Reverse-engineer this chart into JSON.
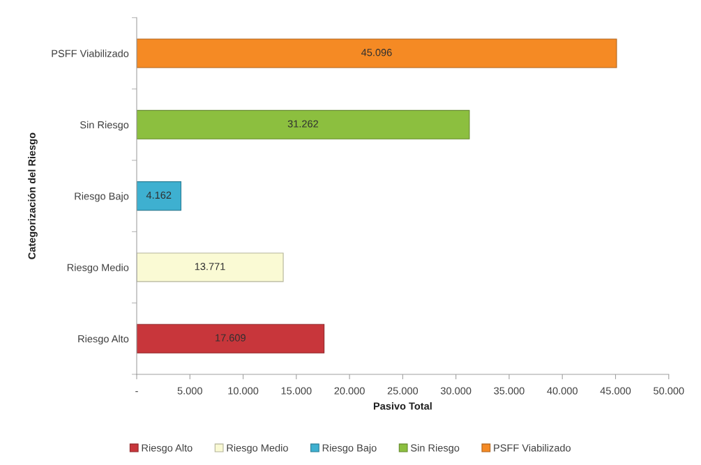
{
  "chart_data": {
    "type": "bar",
    "orientation": "horizontal",
    "stacked": true,
    "xlabel": "Pasivo Total",
    "ylabel": "Categorización del Riesgo",
    "categories": [
      "PSFF Viabilizado",
      "Sin Riesgo",
      "Riesgo Bajo",
      "Riesgo Medio",
      "Riesgo Alto"
    ],
    "series": [
      {
        "name": "Riesgo Alto",
        "color": "#c8363b",
        "values": [
          null,
          null,
          null,
          null,
          17609
        ],
        "value_labels": [
          null,
          null,
          null,
          null,
          "17.609"
        ]
      },
      {
        "name": "Riesgo Medio",
        "color": "#fafad4",
        "values": [
          null,
          null,
          null,
          13771,
          null
        ],
        "value_labels": [
          null,
          null,
          null,
          "13.771",
          null
        ]
      },
      {
        "name": "Riesgo Bajo",
        "color": "#3eb0d0",
        "values": [
          null,
          null,
          4162,
          null,
          null
        ],
        "value_labels": [
          null,
          null,
          "4.162",
          null,
          null
        ]
      },
      {
        "name": "Sin Riesgo",
        "color": "#8cbf3f",
        "values": [
          null,
          31262,
          null,
          null,
          null
        ],
        "value_labels": [
          null,
          "31.262",
          null,
          null,
          null
        ]
      },
      {
        "name": "PSFF Viabilizado",
        "color": "#f58a24",
        "values": [
          45096,
          null,
          null,
          null,
          null
        ],
        "value_labels": [
          "45.096",
          null,
          null,
          null,
          null
        ]
      }
    ],
    "xlim": [
      0,
      50000
    ],
    "xticks": [
      {
        "value": 0,
        "label": "-"
      },
      {
        "value": 5000,
        "label": "5.000"
      },
      {
        "value": 10000,
        "label": "10.000"
      },
      {
        "value": 15000,
        "label": "15.000"
      },
      {
        "value": 20000,
        "label": "20.000"
      },
      {
        "value": 25000,
        "label": "25.000"
      },
      {
        "value": 30000,
        "label": "30.000"
      },
      {
        "value": 35000,
        "label": "35.000"
      },
      {
        "value": 40000,
        "label": "40.000"
      },
      {
        "value": 45000,
        "label": "45.000"
      },
      {
        "value": 50000,
        "label": "50.000"
      }
    ],
    "legend": "bottom"
  }
}
